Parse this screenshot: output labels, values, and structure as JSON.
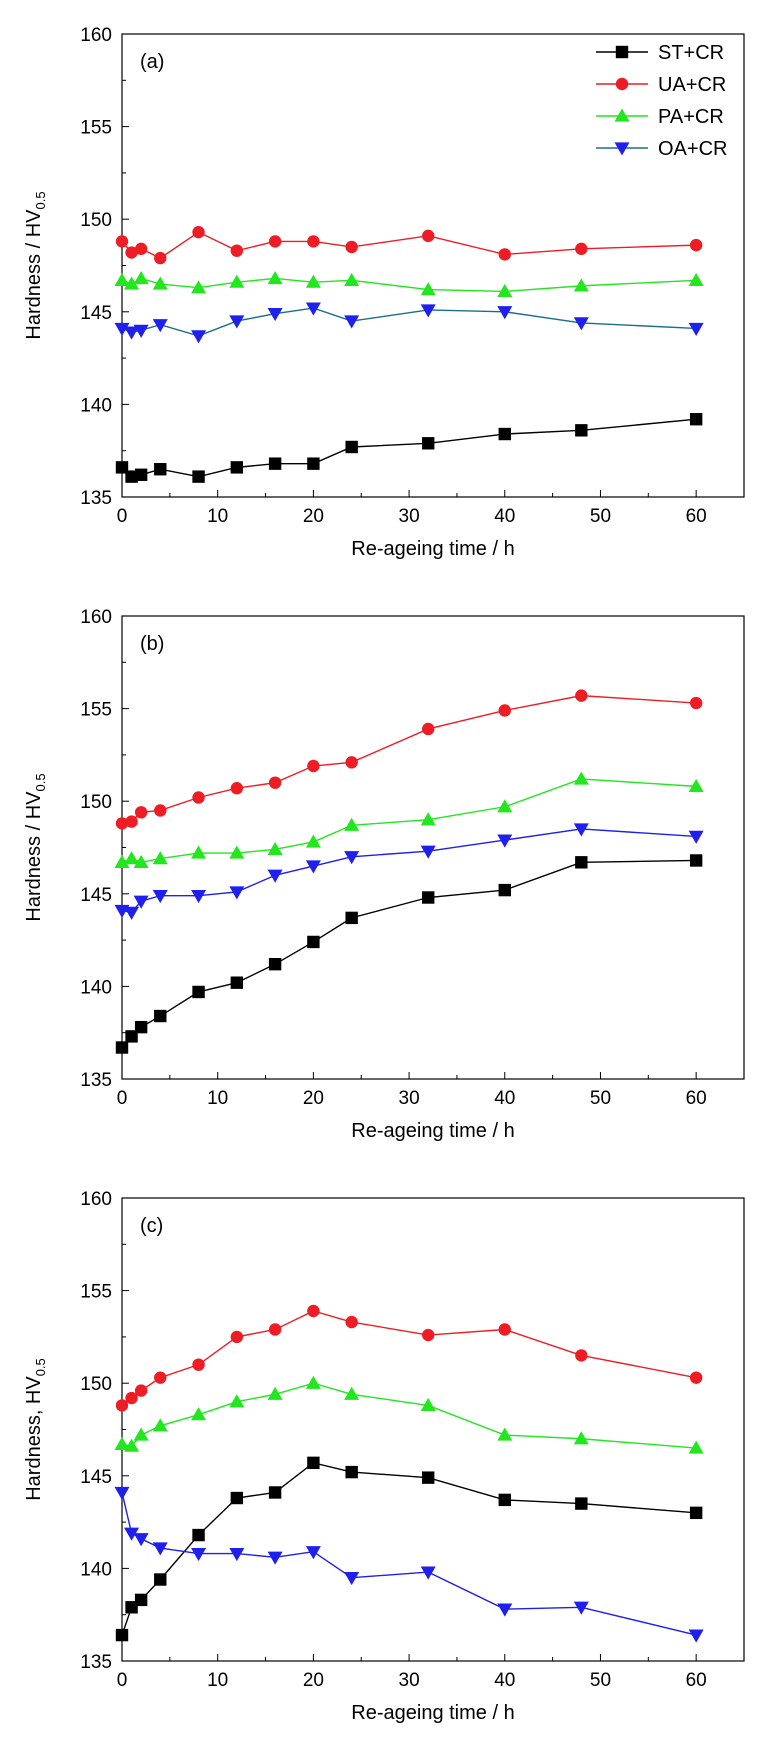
{
  "chart_data": [
    {
      "type": "line",
      "panel_label": "(a)",
      "xlabel": "Re-ageing time / h",
      "ylabel": "Hardness / HV",
      "ylabel_sub": "0.5",
      "xlim": [
        0,
        65
      ],
      "ylim": [
        135,
        160
      ],
      "xticks": [
        "0",
        "10",
        "20",
        "30",
        "40",
        "50",
        "60"
      ],
      "yticks": [
        "135",
        "140",
        "145",
        "150",
        "155",
        "160"
      ],
      "legend_position": "top-right",
      "legend": [
        "ST+CR",
        "UA+CR",
        "PA+CR",
        "OA+CR"
      ],
      "x": [
        0,
        1,
        2,
        4,
        8,
        12,
        16,
        20,
        24,
        32,
        40,
        48,
        60
      ],
      "series": [
        {
          "name": "ST+CR",
          "color": "#000000",
          "line_color": "#000000",
          "marker": "square",
          "values": [
            136.6,
            136.1,
            136.2,
            136.5,
            136.1,
            136.6,
            136.8,
            136.8,
            137.7,
            137.9,
            138.4,
            138.6,
            139.2
          ]
        },
        {
          "name": "UA+CR",
          "color": "#ee1c25",
          "line_color": "#ee1c25",
          "marker": "circle",
          "values": [
            148.8,
            148.2,
            148.4,
            147.9,
            149.3,
            148.3,
            148.8,
            148.8,
            148.5,
            149.1,
            148.1,
            148.4,
            148.6
          ]
        },
        {
          "name": "PA+CR",
          "color": "#22e61e",
          "line_color": "#22e61e",
          "marker": "triangle-up",
          "values": [
            146.7,
            146.5,
            146.8,
            146.5,
            146.3,
            146.6,
            146.8,
            146.6,
            146.7,
            146.2,
            146.1,
            146.4,
            146.7
          ]
        },
        {
          "name": "OA+CR",
          "color": "#1f1fee",
          "line_color": "#1a6e8c",
          "marker": "triangle-down",
          "values": [
            144.1,
            143.9,
            144.0,
            144.3,
            143.7,
            144.5,
            144.9,
            145.2,
            144.5,
            145.1,
            145.0,
            144.4,
            144.1
          ]
        }
      ]
    },
    {
      "type": "line",
      "panel_label": "(b)",
      "xlabel": "Re-ageing time / h",
      "ylabel": "Hardness / HV",
      "ylabel_sub": "0.5",
      "xlim": [
        0,
        65
      ],
      "ylim": [
        135,
        160
      ],
      "xticks": [
        "0",
        "10",
        "20",
        "30",
        "40",
        "50",
        "60"
      ],
      "yticks": [
        "135",
        "140",
        "145",
        "150",
        "155",
        "160"
      ],
      "x": [
        0,
        1,
        2,
        4,
        8,
        12,
        16,
        20,
        24,
        32,
        40,
        48,
        60
      ],
      "series": [
        {
          "name": "ST+CR",
          "color": "#000000",
          "line_color": "#000000",
          "marker": "square",
          "values": [
            136.7,
            137.3,
            137.8,
            138.4,
            139.7,
            140.2,
            141.2,
            142.4,
            143.7,
            144.8,
            145.2,
            146.7,
            146.8
          ]
        },
        {
          "name": "UA+CR",
          "color": "#ee1c25",
          "line_color": "#ee1c25",
          "marker": "circle",
          "values": [
            148.8,
            148.9,
            149.4,
            149.5,
            150.2,
            150.7,
            151.0,
            151.9,
            152.1,
            153.9,
            154.9,
            155.7,
            155.3
          ]
        },
        {
          "name": "PA+CR",
          "color": "#22e61e",
          "line_color": "#22e61e",
          "marker": "triangle-up",
          "values": [
            146.7,
            146.9,
            146.7,
            146.9,
            147.2,
            147.2,
            147.4,
            147.8,
            148.7,
            149.0,
            149.7,
            151.2,
            150.8
          ]
        },
        {
          "name": "OA+CR",
          "color": "#1f1fee",
          "line_color": "#1f1fee",
          "marker": "triangle-down",
          "values": [
            144.1,
            144.0,
            144.6,
            144.9,
            144.9,
            145.1,
            146.0,
            146.5,
            147.0,
            147.3,
            147.9,
            148.5,
            148.1
          ]
        }
      ]
    },
    {
      "type": "line",
      "panel_label": "(c)",
      "xlabel": "Re-ageing time / h",
      "ylabel": "Hardness, HV",
      "ylabel_sub": "0.5",
      "xlim": [
        0,
        65
      ],
      "ylim": [
        135,
        160
      ],
      "xticks": [
        "0",
        "10",
        "20",
        "30",
        "40",
        "50",
        "60"
      ],
      "yticks": [
        "135",
        "140",
        "145",
        "150",
        "155",
        "160"
      ],
      "x": [
        0,
        1,
        2,
        4,
        8,
        12,
        16,
        20,
        24,
        32,
        40,
        48,
        60
      ],
      "series": [
        {
          "name": "ST+CR",
          "color": "#000000",
          "line_color": "#000000",
          "marker": "square",
          "values": [
            136.4,
            137.9,
            138.3,
            139.4,
            141.8,
            143.8,
            144.1,
            145.7,
            145.2,
            144.9,
            143.7,
            143.5,
            143.0
          ]
        },
        {
          "name": "UA+CR",
          "color": "#ee1c25",
          "line_color": "#ee1c25",
          "marker": "circle",
          "values": [
            148.8,
            149.2,
            149.6,
            150.3,
            151.0,
            152.5,
            152.9,
            153.9,
            153.3,
            152.6,
            152.9,
            151.5,
            150.3
          ]
        },
        {
          "name": "PA+CR",
          "color": "#22e61e",
          "line_color": "#22e61e",
          "marker": "triangle-up",
          "values": [
            146.7,
            146.6,
            147.2,
            147.7,
            148.3,
            149.0,
            149.4,
            150.0,
            149.4,
            148.8,
            147.2,
            147.0,
            146.5
          ]
        },
        {
          "name": "OA+CR",
          "color": "#1f1fee",
          "line_color": "#1f1fee",
          "marker": "triangle-down",
          "values": [
            144.1,
            141.9,
            141.6,
            141.1,
            140.8,
            140.8,
            140.6,
            140.9,
            139.5,
            139.8,
            137.8,
            137.9,
            136.4
          ]
        }
      ]
    }
  ]
}
